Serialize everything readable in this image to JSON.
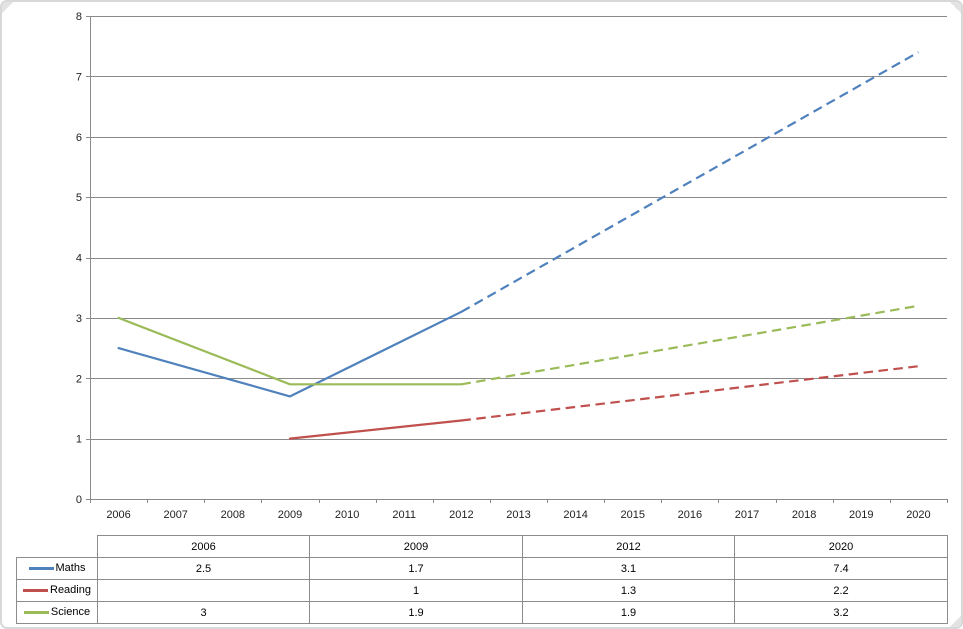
{
  "colors": {
    "maths": "#4F81BD",
    "reading": "#C0504D",
    "science": "#9BBB59",
    "gridline": "#8a8a8a",
    "axis": "#8a8a8a",
    "table_border": "#8c8c8c"
  },
  "chart_data": {
    "type": "line",
    "title": "",
    "xlabel": "",
    "ylabel": "",
    "ylim": [
      0,
      8
    ],
    "y_ticks": [
      0,
      1,
      2,
      3,
      4,
      5,
      6,
      7,
      8
    ],
    "grid": true,
    "legend_position": "table-left",
    "categories": [
      "2006",
      "2007",
      "2008",
      "2009",
      "2010",
      "2011",
      "2012",
      "2013",
      "2014",
      "2015",
      "2016",
      "2017",
      "2018",
      "2019",
      "2020"
    ],
    "series": [
      {
        "name": "Maths",
        "color_key": "maths",
        "x": [
          "2006",
          "2009",
          "2012",
          "2020"
        ],
        "values": [
          2.5,
          1.7,
          3.1,
          7.4
        ],
        "dashed_from": 2
      },
      {
        "name": "Reading",
        "color_key": "reading",
        "x": [
          "2009",
          "2012",
          "2020"
        ],
        "values": [
          1,
          1.3,
          2.2
        ],
        "dashed_from": 1
      },
      {
        "name": "Science",
        "color_key": "science",
        "x": [
          "2006",
          "2009",
          "2012",
          "2020"
        ],
        "values": [
          3,
          1.9,
          1.9,
          3.2
        ],
        "dashed_from": 2
      }
    ],
    "note_solid_vs_dashed": "solid = actual 2006-2012, dashed = projection 2012-2020"
  },
  "table": {
    "header": [
      "",
      "2006",
      "2009",
      "2012",
      "2020"
    ],
    "rows": [
      {
        "label": "Maths",
        "swatch": "maths",
        "values": [
          "2.5",
          "1.7",
          "3.1",
          "7.4"
        ]
      },
      {
        "label": "Reading",
        "swatch": "reading",
        "values": [
          "",
          "1",
          "1.3",
          "2.2"
        ]
      },
      {
        "label": "Science",
        "swatch": "science",
        "values": [
          "3",
          "1.9",
          "1.9",
          "3.2"
        ]
      }
    ]
  }
}
